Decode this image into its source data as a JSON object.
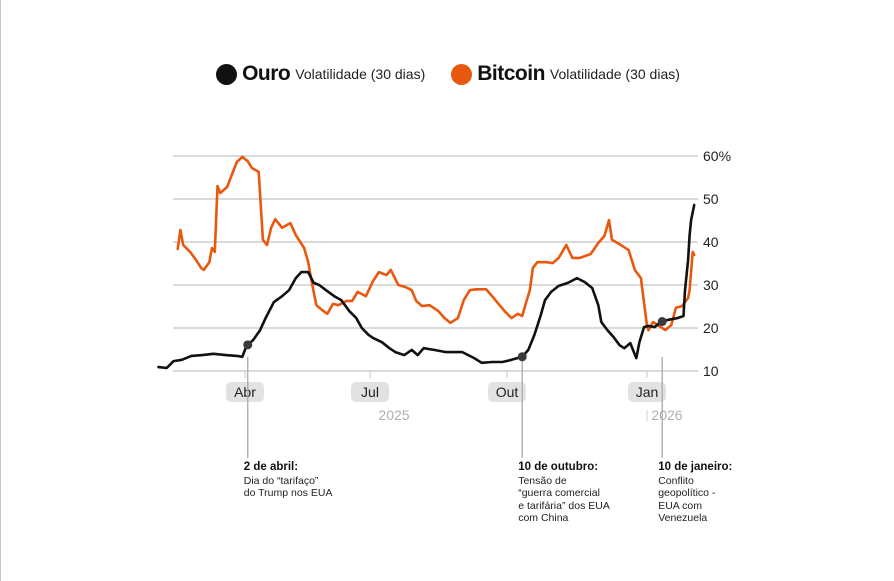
{
  "legend": [
    {
      "name": "Ouro",
      "subtitle": "Volatilidade (30 dias)",
      "color": "#111111"
    },
    {
      "name": "Bitcoin",
      "subtitle": "Volatilidade (30 dias)",
      "color": "#e8580f"
    }
  ],
  "annotations": [
    {
      "title": "2 de abril:",
      "lines": [
        "Dia do “tarifaço”",
        "do Trump nos EUA"
      ],
      "day": 92
    },
    {
      "title": "10 de outubro:",
      "lines": [
        "Tensão de",
        "“guerra comercial",
        "e tarifária” dos EUA",
        "com China"
      ],
      "day": 283
    },
    {
      "title": "10 de janeiro:",
      "lines": [
        "Conflito",
        "geopolítico -",
        "EUA com",
        "Venezuela"
      ],
      "day": 375
    }
  ],
  "chart_data": {
    "type": "line",
    "title": "",
    "xlabel": "",
    "ylabel": "",
    "x_unit": "days since 2025-01-01",
    "ylim": [
      10,
      60
    ],
    "y_ticks": [
      10,
      20,
      30,
      40,
      50,
      60
    ],
    "y_tick_labels": [
      "10",
      "20",
      "30",
      "40",
      "50",
      "60%"
    ],
    "x_ticks": [
      {
        "day": 90,
        "label": "Abr"
      },
      {
        "day": 181,
        "label": "Jul"
      },
      {
        "day": 273,
        "label": "Out"
      },
      {
        "day": 365,
        "label": "Jan"
      }
    ],
    "year_labels": [
      {
        "day": 181,
        "label": "2025"
      },
      {
        "day": 365,
        "label": "2026"
      }
    ],
    "grid": true,
    "legend_position": "top-center",
    "series": [
      {
        "name": "Ouro",
        "color": "#111111",
        "points": [
          [
            27,
            10.9
          ],
          [
            33,
            10.7
          ],
          [
            38,
            12.3
          ],
          [
            44,
            12.6
          ],
          [
            51,
            13.5
          ],
          [
            59,
            13.7
          ],
          [
            67,
            14
          ],
          [
            76,
            13.7
          ],
          [
            84,
            13.5
          ],
          [
            88,
            13.3
          ],
          [
            91,
            15.8
          ],
          [
            96,
            17.2
          ],
          [
            101,
            19.5
          ],
          [
            105,
            22.3
          ],
          [
            111,
            26
          ],
          [
            117,
            27.4
          ],
          [
            122,
            28.8
          ],
          [
            127,
            31.6
          ],
          [
            131,
            33
          ],
          [
            136,
            33
          ],
          [
            140,
            30.5
          ],
          [
            144,
            30
          ],
          [
            149,
            28.8
          ],
          [
            155,
            27.4
          ],
          [
            160,
            26.5
          ],
          [
            166,
            23.9
          ],
          [
            171,
            22.3
          ],
          [
            175,
            20
          ],
          [
            180,
            18.4
          ],
          [
            183,
            17.7
          ],
          [
            189,
            16.7
          ],
          [
            194,
            15.3
          ],
          [
            198,
            14.4
          ],
          [
            204,
            13.7
          ],
          [
            209,
            14.9
          ],
          [
            213,
            13.7
          ],
          [
            217,
            15.3
          ],
          [
            224,
            14.9
          ],
          [
            232,
            14.4
          ],
          [
            243,
            14.4
          ],
          [
            251,
            13
          ],
          [
            256,
            11.9
          ],
          [
            263,
            12.1
          ],
          [
            270,
            12.1
          ],
          [
            276,
            12.6
          ],
          [
            283,
            13.3
          ],
          [
            287,
            14.9
          ],
          [
            291,
            18.4
          ],
          [
            295,
            22.8
          ],
          [
            298,
            26.5
          ],
          [
            302,
            28.4
          ],
          [
            307,
            29.8
          ],
          [
            313,
            30.5
          ],
          [
            319,
            31.6
          ],
          [
            324,
            30.7
          ],
          [
            329,
            29.3
          ],
          [
            333,
            25.3
          ],
          [
            335,
            21.4
          ],
          [
            339,
            19.5
          ],
          [
            343,
            17.9
          ],
          [
            347,
            16
          ],
          [
            350,
            15.3
          ],
          [
            354,
            16.5
          ],
          [
            358,
            13
          ],
          [
            360,
            16.7
          ],
          [
            363,
            20.2
          ],
          [
            366,
            20.5
          ],
          [
            370,
            20.2
          ],
          [
            374,
            21.4
          ],
          [
            379,
            21.9
          ],
          [
            385,
            22.3
          ],
          [
            389,
            22.8
          ],
          [
            390,
            28.8
          ],
          [
            392,
            35.8
          ],
          [
            393,
            41.6
          ],
          [
            394,
            45.1
          ],
          [
            396,
            48.6
          ]
        ]
      },
      {
        "name": "Bitcoin",
        "color": "#e8580f",
        "points": [
          [
            41,
            38.4
          ],
          [
            43,
            42.8
          ],
          [
            45,
            39.3
          ],
          [
            50,
            37.7
          ],
          [
            54,
            36
          ],
          [
            58,
            34
          ],
          [
            60,
            33.5
          ],
          [
            64,
            35.3
          ],
          [
            66,
            38.6
          ],
          [
            68,
            37.7
          ],
          [
            70,
            53
          ],
          [
            72,
            51.4
          ],
          [
            77,
            52.8
          ],
          [
            80,
            55.3
          ],
          [
            84,
            58.6
          ],
          [
            88,
            59.8
          ],
          [
            92,
            58.8
          ],
          [
            95,
            57.2
          ],
          [
            100,
            56.3
          ],
          [
            103,
            40.5
          ],
          [
            106,
            39.3
          ],
          [
            109,
            43.3
          ],
          [
            112,
            45.3
          ],
          [
            117,
            43.3
          ],
          [
            123,
            44.4
          ],
          [
            127,
            41.6
          ],
          [
            133,
            38.6
          ],
          [
            136,
            35.3
          ],
          [
            139,
            30
          ],
          [
            142,
            25.3
          ],
          [
            146,
            24.2
          ],
          [
            150,
            23.3
          ],
          [
            154,
            25.6
          ],
          [
            158,
            25.3
          ],
          [
            164,
            26.3
          ],
          [
            168,
            26.3
          ],
          [
            172,
            28.4
          ],
          [
            178,
            27.4
          ],
          [
            183,
            30.9
          ],
          [
            187,
            33
          ],
          [
            192,
            32.3
          ],
          [
            195,
            33.5
          ],
          [
            200,
            30
          ],
          [
            205,
            29.5
          ],
          [
            209,
            28.8
          ],
          [
            212,
            26.3
          ],
          [
            216,
            25.1
          ],
          [
            221,
            25.3
          ],
          [
            227,
            23.9
          ],
          [
            231,
            22.3
          ],
          [
            235,
            21.2
          ],
          [
            240,
            22.3
          ],
          [
            244,
            26.5
          ],
          [
            248,
            28.8
          ],
          [
            252,
            29
          ],
          [
            259,
            29
          ],
          [
            264,
            27
          ],
          [
            268,
            25.3
          ],
          [
            272,
            23.7
          ],
          [
            276,
            22.3
          ],
          [
            280,
            23.3
          ],
          [
            283,
            22.8
          ],
          [
            285,
            25.3
          ],
          [
            288,
            28.8
          ],
          [
            290,
            34
          ],
          [
            293,
            35.3
          ],
          [
            295,
            35.3
          ],
          [
            299,
            35.3
          ],
          [
            303,
            35.1
          ],
          [
            307,
            36.3
          ],
          [
            312,
            39.3
          ],
          [
            316,
            36.3
          ],
          [
            321,
            36.3
          ],
          [
            328,
            37.2
          ],
          [
            333,
            39.8
          ],
          [
            337,
            41.4
          ],
          [
            340,
            45.1
          ],
          [
            342,
            40.5
          ],
          [
            347,
            39.5
          ],
          [
            353,
            38.1
          ],
          [
            357,
            33.5
          ],
          [
            361,
            31.6
          ],
          [
            365,
            20.5
          ],
          [
            366,
            19.5
          ],
          [
            369,
            21.4
          ],
          [
            373,
            20.5
          ],
          [
            377,
            19.5
          ],
          [
            381,
            20.7
          ],
          [
            384,
            24.7
          ],
          [
            388,
            25.1
          ],
          [
            392,
            27
          ],
          [
            393,
            28.8
          ],
          [
            395,
            37.7
          ],
          [
            396,
            37
          ]
        ]
      }
    ]
  }
}
